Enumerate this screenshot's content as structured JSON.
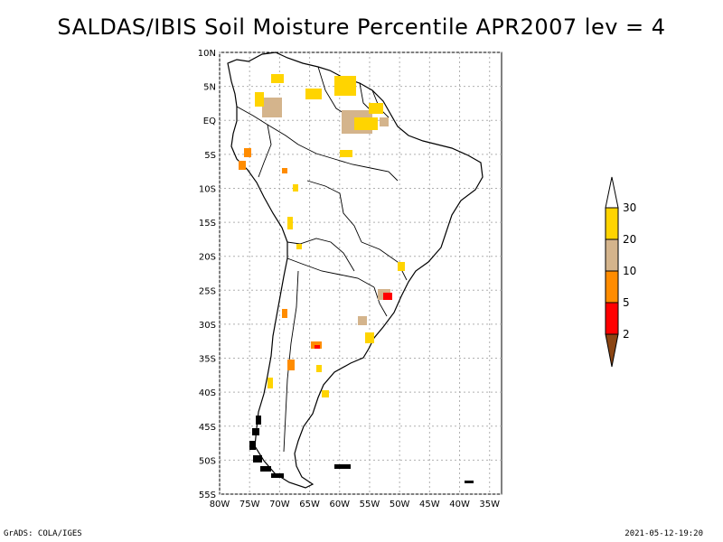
{
  "title": "SALDAS/IBIS Soil Moisture Percentile APR2007 lev = 4",
  "map": {
    "lat_ticks": [
      "10N",
      "5N",
      "EQ",
      "5S",
      "10S",
      "15S",
      "20S",
      "25S",
      "30S",
      "35S",
      "40S",
      "45S",
      "50S",
      "55S"
    ],
    "lon_ticks": [
      "80W",
      "75W",
      "70W",
      "65W",
      "60W",
      "55W",
      "50W",
      "45W",
      "40W",
      "35W"
    ],
    "lat_range": [
      -55,
      10
    ],
    "lon_range": [
      -80,
      -33
    ],
    "gridlines": true
  },
  "colorbar": {
    "labels": [
      "30",
      "20",
      "10",
      "5",
      "2"
    ],
    "colors": {
      "top_arrow": "#ffffff",
      "band_20_30": "#ffd400",
      "band_10_20": "#d4b48c",
      "band_5_10": "#ff8c00",
      "band_2_5": "#ff0000",
      "bottom_arrow": "#8b4513"
    }
  },
  "footer": {
    "left": "GrADS: COLA/IGES",
    "right": "2021-05-12-19:20"
  }
}
